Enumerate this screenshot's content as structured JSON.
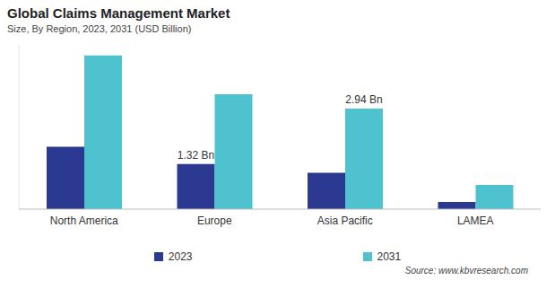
{
  "chart_data": {
    "type": "bar",
    "title": "Global Claims Management Market",
    "subtitle": "Size, By Region, 2023, 2031 (USD Billion)",
    "annotations": [
      "Source: www.kbvresearch.com"
    ],
    "categories": [
      "North America",
      "Europe",
      "Asia Pacific",
      "LAMEA"
    ],
    "series": [
      {
        "name": "2023",
        "color": "#2b3990",
        "values": [
          1.82,
          1.32,
          1.06,
          0.21
        ],
        "value_labels": [
          null,
          "1.32 Bn",
          null,
          null
        ]
      },
      {
        "name": "2031",
        "color": "#4ec3cf",
        "values": [
          4.49,
          3.36,
          2.94,
          0.71
        ],
        "value_labels": [
          null,
          null,
          "2.94 Bn",
          null
        ]
      }
    ],
    "ylim": [
      0,
      4.8
    ],
    "tick_labels": "x",
    "grid": false,
    "data_labels": true,
    "legend": "bottom"
  }
}
